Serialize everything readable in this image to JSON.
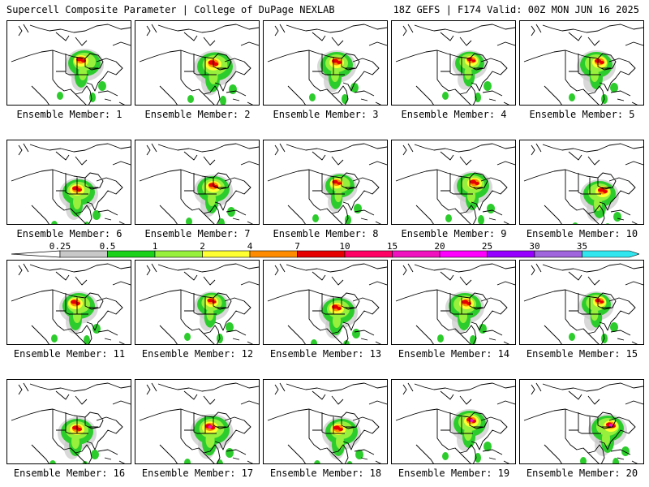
{
  "header": {
    "title": "Supercell Composite Parameter | College of DuPage NEXLAB",
    "run_info": "18Z GEFS | F174 Valid: 00Z MON JUN 16 2025"
  },
  "caption_prefix": "Ensemble Member: ",
  "members": [
    1,
    2,
    3,
    4,
    5,
    6,
    7,
    8,
    9,
    10,
    11,
    12,
    13,
    14,
    15,
    16,
    17,
    18,
    19,
    20
  ],
  "colorbar": {
    "labels": [
      "0.25",
      "0.5",
      "1",
      "2",
      "4",
      "7",
      "10",
      "15",
      "20",
      "25",
      "30",
      "35"
    ],
    "colors": [
      "#c8c8c8",
      "#19d219",
      "#96f03c",
      "#ffff32",
      "#ff8c00",
      "#e60000",
      "#ff0064",
      "#f012be",
      "#ff00ff",
      "#9600ff",
      "#a064dc",
      "#32e6f0"
    ]
  },
  "map_colors": {
    "coast": "#000000",
    "light": "#c8c8c8",
    "green": "#2dcc2d",
    "lime": "#96f03c",
    "yellow": "#ffff32",
    "orange": "#ff8c00",
    "red": "#e60000",
    "magenta": "#f012be"
  }
}
